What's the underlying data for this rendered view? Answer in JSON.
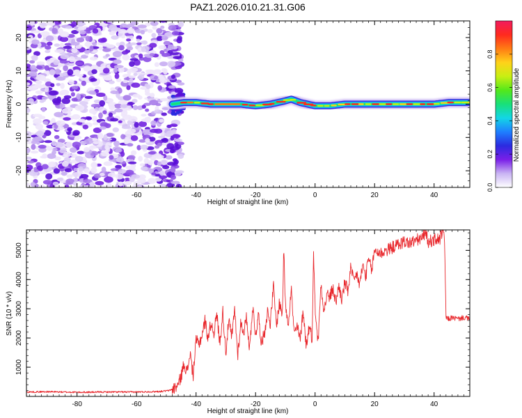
{
  "title": "PAZ1.2026.010.21.31.G06",
  "chart_data": [
    {
      "type": "heatmap",
      "name": "spectrogram",
      "xlabel": "Height of straight line (km)",
      "ylabel": "Frequency (Hz)",
      "xlim": [
        -97,
        52
      ],
      "ylim": [
        -25,
        25
      ],
      "x_ticks": [
        -80,
        -60,
        -40,
        -20,
        0,
        20,
        40
      ],
      "y_ticks": [
        -20,
        -10,
        0,
        10,
        20
      ],
      "noise_region": {
        "x": [
          -97,
          -47
        ],
        "description": "random low-amplitude purple speckle"
      },
      "signal_ridge": {
        "x": [
          -48,
          -44,
          -40,
          -35,
          -30,
          -25,
          -20,
          -15,
          -10,
          -8,
          -5,
          0,
          5,
          10,
          20,
          30,
          40,
          45,
          50,
          52
        ],
        "frequency": [
          0,
          0.5,
          0.5,
          0,
          0,
          0,
          -0.5,
          0,
          1,
          1.5,
          0.5,
          -0.5,
          -0.5,
          0,
          0,
          0,
          0,
          0.5,
          0.5,
          0.5
        ]
      },
      "colorbar": {
        "label": "Normalized spectral amplitude",
        "range": [
          0,
          1
        ],
        "ticks": [
          "0.0",
          "0.2",
          "0.4",
          "0.6",
          "0.8"
        ],
        "colors": [
          "#ffffff",
          "#c9b4f3",
          "#7a1fe8",
          "#2b2be0",
          "#1e7fff",
          "#13d6e6",
          "#18e07a",
          "#54e81a",
          "#c8ef13",
          "#ffd21a",
          "#ff7b14",
          "#ff2a1e",
          "#f21b5e"
        ]
      }
    },
    {
      "type": "line",
      "name": "snr",
      "xlabel": "Height of straight line (km)",
      "ylabel": "SNR (10 * v/v)",
      "xlim": [
        -97,
        52
      ],
      "ylim": [
        0,
        5700
      ],
      "x_ticks": [
        -80,
        -60,
        -40,
        -20,
        0,
        20,
        40
      ],
      "y_ticks": [
        1000,
        2000,
        3000,
        4000,
        5000
      ],
      "color": "#e8262b",
      "series": [
        {
          "name": "SNR",
          "x": [
            -97,
            -90,
            -80,
            -70,
            -60,
            -52,
            -49,
            -47,
            -46,
            -45,
            -44,
            -43,
            -42,
            -41,
            -40,
            -39,
            -38,
            -37,
            -36,
            -35,
            -34,
            -33,
            -32,
            -31,
            -30,
            -29,
            -28,
            -27,
            -26,
            -25,
            -24,
            -23,
            -22,
            -21,
            -20,
            -19,
            -18,
            -17,
            -16,
            -15,
            -14,
            -13,
            -12,
            -11,
            -10.5,
            -10,
            -9,
            -8,
            -7,
            -6,
            -5,
            -4,
            -3,
            -2,
            -1,
            -0.5,
            0,
            1,
            2,
            3,
            4,
            5,
            6,
            7,
            8,
            9,
            10,
            11,
            12,
            13,
            14,
            15,
            16,
            17,
            18,
            19,
            20,
            22,
            24,
            26,
            28,
            30,
            32,
            34,
            36,
            37,
            38,
            40,
            42,
            43,
            43.5,
            44,
            45,
            46,
            48,
            50,
            52
          ],
          "values": [
            150,
            160,
            140,
            150,
            150,
            170,
            200,
            300,
            400,
            700,
            1150,
            800,
            1500,
            700,
            1900,
            1800,
            2100,
            2600,
            2000,
            2500,
            2200,
            2800,
            1800,
            2900,
            1500,
            2600,
            2000,
            3000,
            1400,
            2500,
            2200,
            2700,
            1600,
            3100,
            2100,
            2800,
            1800,
            2200,
            2900,
            2500,
            3800,
            2400,
            3200,
            2800,
            5100,
            3200,
            2500,
            3700,
            2100,
            2400,
            1900,
            3000,
            1700,
            2400,
            2000,
            4900,
            3100,
            1800,
            3900,
            2900,
            3500,
            3400,
            3700,
            3200,
            3800,
            3300,
            3900,
            3600,
            4400,
            3900,
            4200,
            3800,
            4500,
            4100,
            4700,
            4300,
            5000,
            4900,
            5000,
            5100,
            5200,
            5300,
            5250,
            5350,
            5400,
            5650,
            5300,
            5350,
            5400,
            5650,
            5400,
            2700,
            2650,
            2700,
            2650,
            2700,
            2650
          ]
        }
      ]
    }
  ]
}
